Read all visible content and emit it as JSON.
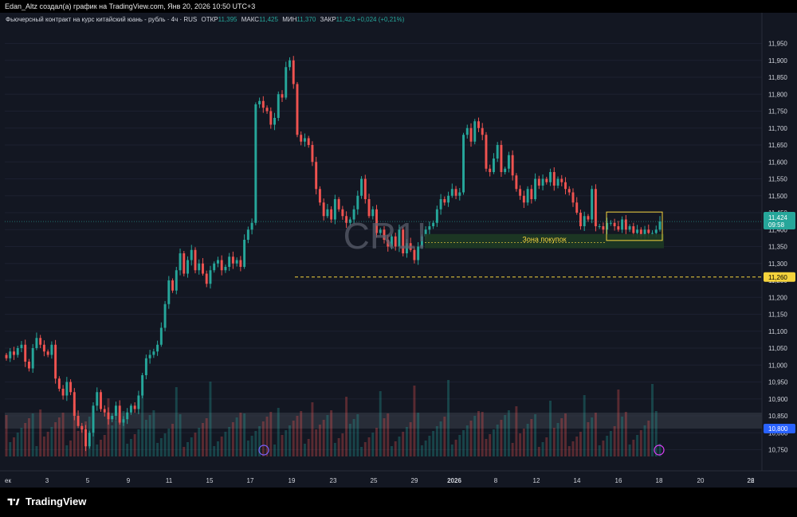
{
  "header": {
    "author_line": "Edan_Altz создал(а) график на TradingView.com, Янв 20, 2026 10:50 UTC+3"
  },
  "legend": {
    "symbol_title": "Фьючерсный контракт на курс китайский юань - рубль · 4ч · RUS",
    "open_label": "ОТКР",
    "open": "11,395",
    "high_label": "МАКС",
    "high": "11,425",
    "low_label": "МИН",
    "low": "11,370",
    "close_label": "ЗАКР",
    "close": "11,424",
    "change": "+0,024 (+0,21%)"
  },
  "colors": {
    "background": "#131722",
    "up": "#26a69a",
    "down": "#ef5350",
    "zone_fill": "#1e3a23",
    "zone_text": "#f5d33c",
    "box": "#f5d33c",
    "level_line": "#f5d33c",
    "watermark": "#5d6270"
  },
  "watermark": "CR1!",
  "annotations": {
    "zone_label": "Зона покупок",
    "level_value": "11,260",
    "price_badge_value": "11,424",
    "price_badge_time": "09:58",
    "volume_badge_value": "10,800"
  },
  "footer": {
    "brand": "TradingView"
  },
  "chart_data": {
    "type": "candlestick",
    "title": "Фьючерсный контракт на курс китайский юань - рубль · 4ч · RUS",
    "ylim": [
      10.73,
      11.97
    ],
    "y_ticks": [
      "11,950",
      "11,900",
      "11,850",
      "11,800",
      "11,750",
      "11,700",
      "11,650",
      "11,600",
      "11,550",
      "11,500",
      "11,450",
      "11,400",
      "11,350",
      "11,300",
      "11,250",
      "11,200",
      "11,150",
      "11,100",
      "11,050",
      "11,000",
      "10,950",
      "10,900",
      "10,850",
      "10,800",
      "10,750"
    ],
    "x_ticks": [
      "ек",
      "3",
      "5",
      "9",
      "11",
      "15",
      "17",
      "19",
      "23",
      "25",
      "29",
      "2026",
      "8",
      "12",
      "14",
      "16",
      "18",
      "20",
      "22",
      "26"
    ],
    "current_price": 11.424,
    "horizontal_level": 11.26,
    "buy_zone": [
      11.345,
      11.387
    ],
    "series": [
      {
        "name": "",
        "closes": [
          11.02,
          11.04,
          11.03,
          11.05,
          11.06,
          11.01,
          10.99,
          11.05,
          11.08,
          11.06,
          11.04,
          11.03,
          11.06,
          10.96,
          10.93,
          10.91,
          10.95,
          10.92,
          10.85,
          10.82,
          10.81,
          10.76,
          10.8,
          10.88,
          10.92,
          10.87,
          10.86,
          10.84,
          10.85,
          10.88,
          10.83,
          10.84,
          10.86,
          10.88,
          10.87,
          10.91,
          10.97,
          11.02,
          11.03,
          11.04,
          11.06,
          11.11,
          11.18,
          11.25,
          11.22,
          11.28,
          11.33,
          11.27,
          11.31,
          11.34,
          11.28,
          11.3,
          11.27,
          11.24,
          11.28,
          11.3,
          11.31,
          11.28,
          11.29,
          11.32,
          11.3,
          11.31,
          11.29,
          11.37,
          11.4,
          11.42,
          11.77,
          11.78,
          11.76,
          11.75,
          11.71,
          11.73,
          11.8,
          11.79,
          11.88,
          11.9,
          11.83,
          11.68,
          11.66,
          11.67,
          11.65,
          11.6,
          11.52,
          11.48,
          11.44,
          11.46,
          11.43,
          11.49,
          11.46,
          11.44,
          11.42,
          11.43,
          11.46,
          11.5,
          11.55,
          11.49,
          11.44,
          11.46,
          11.39,
          11.4,
          11.37,
          11.35,
          11.38,
          11.35,
          11.4,
          11.33,
          11.36,
          11.34,
          11.31,
          11.35,
          11.38,
          11.4,
          11.41,
          11.42,
          11.46,
          11.49,
          11.48,
          11.5,
          11.52,
          11.5,
          11.51,
          11.68,
          11.7,
          11.66,
          11.72,
          11.7,
          11.68,
          11.58,
          11.57,
          11.61,
          11.65,
          11.57,
          11.58,
          11.62,
          11.56,
          11.52,
          11.5,
          11.48,
          11.52,
          11.49,
          11.55,
          11.53,
          11.55,
          11.54,
          11.57,
          11.53,
          11.55,
          11.54,
          11.52,
          11.51,
          11.48,
          11.45,
          11.41,
          11.44,
          11.43,
          11.52,
          11.41,
          11.41,
          11.4,
          11.42,
          11.42,
          11.41,
          11.4,
          11.43,
          11.4,
          11.41,
          11.39,
          11.4,
          11.38,
          11.4,
          11.39,
          11.39,
          11.4,
          11.424
        ]
      }
    ],
    "volume_ylim": [
      0,
      1
    ]
  }
}
